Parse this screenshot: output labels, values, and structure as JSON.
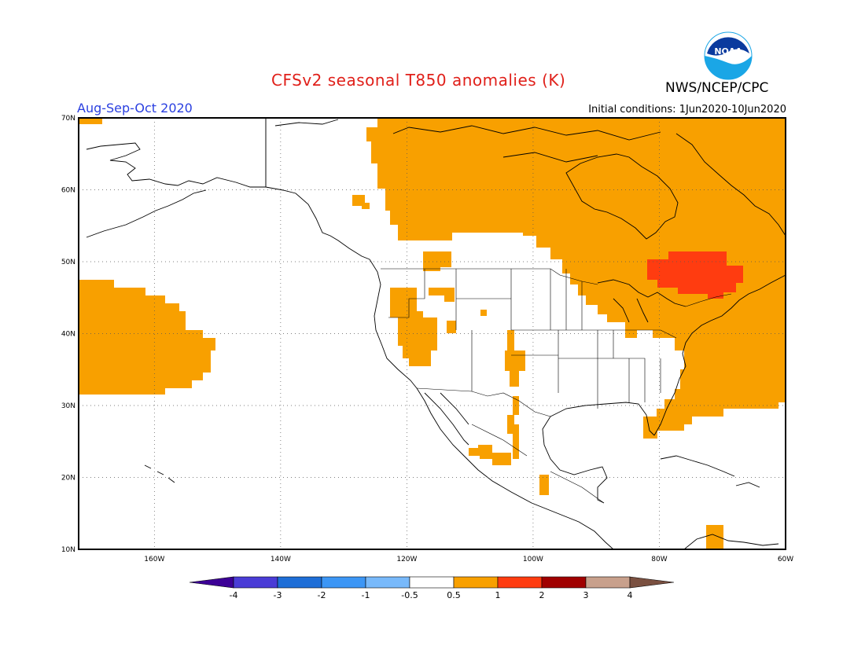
{
  "header": {
    "title": "CFSv2 seasonal T850 anomalies (K)",
    "agency": "NWS/NCEP/CPC",
    "season": "Aug-Sep-Oct 2020",
    "initial_conditions": "Initial conditions: 1Jun2020-10Jun2020",
    "logo_text": "NOAA"
  },
  "map": {
    "region": "North America",
    "lon_range": [
      -172,
      -60
    ],
    "lat_range": [
      10,
      70
    ],
    "lat_ticks": [
      {
        "value": 10,
        "label": "10N"
      },
      {
        "value": 20,
        "label": "20N"
      },
      {
        "value": 30,
        "label": "30N"
      },
      {
        "value": 40,
        "label": "40N"
      },
      {
        "value": 50,
        "label": "50N"
      },
      {
        "value": 60,
        "label": "60N"
      },
      {
        "value": 70,
        "label": "70N"
      }
    ],
    "lon_ticks": [
      {
        "value": -160,
        "label": "160W"
      },
      {
        "value": -140,
        "label": "140W"
      },
      {
        "value": -120,
        "label": "120W"
      },
      {
        "value": -100,
        "label": "100W"
      },
      {
        "value": -80,
        "label": "80W"
      },
      {
        "value": -60,
        "label": "60W"
      }
    ],
    "grid": "dotted",
    "anomaly_regions": [
      {
        "level": "0.5 to 1",
        "color": "#f8a000",
        "area": "northern and eastern Canada"
      },
      {
        "level": "0.5 to 1",
        "color": "#f8a000",
        "area": "eastern United States and western Atlantic"
      },
      {
        "level": "0.5 to 1",
        "color": "#f8a000",
        "area": "central North Pacific"
      },
      {
        "level": "0.5 to 1",
        "color": "#f8a000",
        "area": "western United States interior"
      },
      {
        "level": "0.5 to 1",
        "color": "#f8a000",
        "area": "Mexico and Caribbean spots"
      },
      {
        "level": "1 to 2",
        "color": "#ff3c10",
        "area": "southern Quebec / Ontario"
      }
    ]
  },
  "colorbar": {
    "labels": [
      "-4",
      "-3",
      "-2",
      "-1",
      "-0.5",
      "0.5",
      "1",
      "2",
      "3",
      "4"
    ],
    "colors": [
      "#3c0096",
      "#4a3cd6",
      "#1e6ed7",
      "#3c96f5",
      "#78b9fa",
      "#ffffff",
      "#f8a000",
      "#ff3c10",
      "#a00000",
      "#c8a08c",
      "#7a5040"
    ]
  }
}
